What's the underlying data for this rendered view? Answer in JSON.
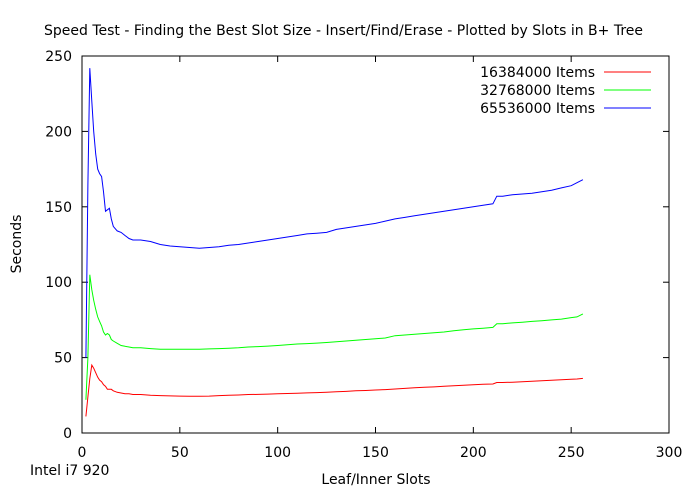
{
  "chart_data": {
    "type": "line",
    "title": "Speed Test - Finding the Best Slot Size - Insert/Find/Erase - Plotted by Slots in B+ Tree",
    "xlabel": "Leaf/Inner Slots",
    "ylabel": "Seconds",
    "footnote": "Intel i7 920",
    "xlim": [
      0,
      300
    ],
    "ylim": [
      0,
      250
    ],
    "xticks": [
      0,
      50,
      100,
      150,
      200,
      250,
      300
    ],
    "yticks": [
      0,
      50,
      100,
      150,
      200,
      250
    ],
    "legend_position": "top-right",
    "grid": false,
    "series": [
      {
        "name": "16384000 Items",
        "color": "#ff0000",
        "x": [
          2,
          3,
          4,
          5,
          6,
          7,
          8,
          9,
          10,
          11,
          12,
          13,
          14,
          15,
          16,
          18,
          20,
          22,
          24,
          26,
          28,
          30,
          35,
          40,
          45,
          50,
          55,
          60,
          65,
          70,
          75,
          80,
          85,
          90,
          95,
          100,
          105,
          110,
          115,
          120,
          125,
          130,
          135,
          140,
          145,
          150,
          155,
          160,
          165,
          170,
          175,
          180,
          185,
          190,
          195,
          200,
          205,
          210,
          212,
          215,
          220,
          225,
          230,
          235,
          240,
          245,
          250,
          253,
          256
        ],
        "values": [
          11,
          24,
          36,
          45,
          43,
          40,
          37,
          35,
          34,
          32,
          31,
          29,
          29,
          29,
          28,
          27,
          26.5,
          26,
          26,
          25.5,
          25.5,
          25.5,
          25,
          24.8,
          24.6,
          24.5,
          24.4,
          24.4,
          24.5,
          24.8,
          25,
          25.2,
          25.5,
          25.6,
          25.8,
          26,
          26.2,
          26.4,
          26.6,
          26.8,
          27,
          27.3,
          27.6,
          28,
          28.2,
          28.5,
          28.8,
          29.2,
          29.6,
          30,
          30.3,
          30.6,
          31,
          31.3,
          31.6,
          32,
          32.3,
          32.5,
          33.5,
          33.5,
          33.7,
          34,
          34.3,
          34.6,
          35,
          35.3,
          35.6,
          35.8,
          36.2
        ]
      },
      {
        "name": "32768000 Items",
        "color": "#00ff00",
        "x": [
          2,
          3,
          4,
          5,
          6,
          7,
          8,
          9,
          10,
          11,
          12,
          13,
          14,
          15,
          16,
          18,
          20,
          22,
          24,
          26,
          28,
          30,
          35,
          40,
          45,
          50,
          55,
          60,
          65,
          70,
          75,
          80,
          85,
          90,
          95,
          100,
          105,
          110,
          115,
          120,
          125,
          130,
          135,
          140,
          145,
          150,
          155,
          160,
          165,
          170,
          175,
          180,
          185,
          190,
          195,
          200,
          205,
          210,
          212,
          215,
          220,
          225,
          230,
          235,
          240,
          245,
          250,
          253,
          256
        ],
        "values": [
          22,
          50,
          105,
          95,
          88,
          82,
          77,
          74,
          71,
          67,
          65,
          66,
          65,
          62,
          61,
          59.5,
          58,
          57.5,
          57,
          56.5,
          56.5,
          56.5,
          56,
          55.5,
          55.5,
          55.5,
          55.5,
          55.5,
          55.8,
          56,
          56.2,
          56.5,
          57,
          57.3,
          57.6,
          58,
          58.5,
          59,
          59.3,
          59.6,
          60,
          60.5,
          61,
          61.5,
          62,
          62.5,
          63,
          64.5,
          65,
          65.5,
          66,
          66.5,
          67,
          67.8,
          68.5,
          69,
          69.5,
          70,
          72.5,
          72.5,
          73,
          73.5,
          74,
          74.5,
          75,
          75.5,
          76.5,
          77,
          79
        ]
      },
      {
        "name": "65536000 Items",
        "color": "#0000ff",
        "x": [
          2,
          3,
          4,
          5,
          6,
          7,
          8,
          9,
          10,
          11,
          12,
          13,
          14,
          15,
          16,
          18,
          20,
          22,
          24,
          26,
          28,
          30,
          35,
          40,
          45,
          50,
          55,
          60,
          65,
          70,
          75,
          80,
          85,
          90,
          95,
          100,
          105,
          110,
          115,
          120,
          125,
          130,
          135,
          140,
          145,
          150,
          155,
          160,
          165,
          170,
          175,
          180,
          185,
          190,
          195,
          200,
          205,
          210,
          212,
          215,
          220,
          225,
          230,
          235,
          240,
          245,
          250,
          253,
          256
        ],
        "values": [
          50,
          165,
          242,
          220,
          200,
          185,
          175,
          172,
          170,
          160,
          147,
          148,
          149,
          142,
          137,
          134,
          133,
          131,
          129,
          128,
          128,
          128,
          127,
          125,
          124,
          123.5,
          123,
          122.5,
          123,
          123.5,
          124.5,
          125,
          126,
          127,
          128,
          129,
          130,
          131,
          132,
          132.5,
          133,
          135,
          136,
          137,
          138,
          139,
          140.5,
          142,
          143,
          144,
          145,
          146,
          147,
          148,
          149,
          150,
          151,
          152,
          157,
          157,
          158,
          158.5,
          159,
          160,
          161,
          162.5,
          164,
          166,
          168
        ]
      }
    ]
  }
}
